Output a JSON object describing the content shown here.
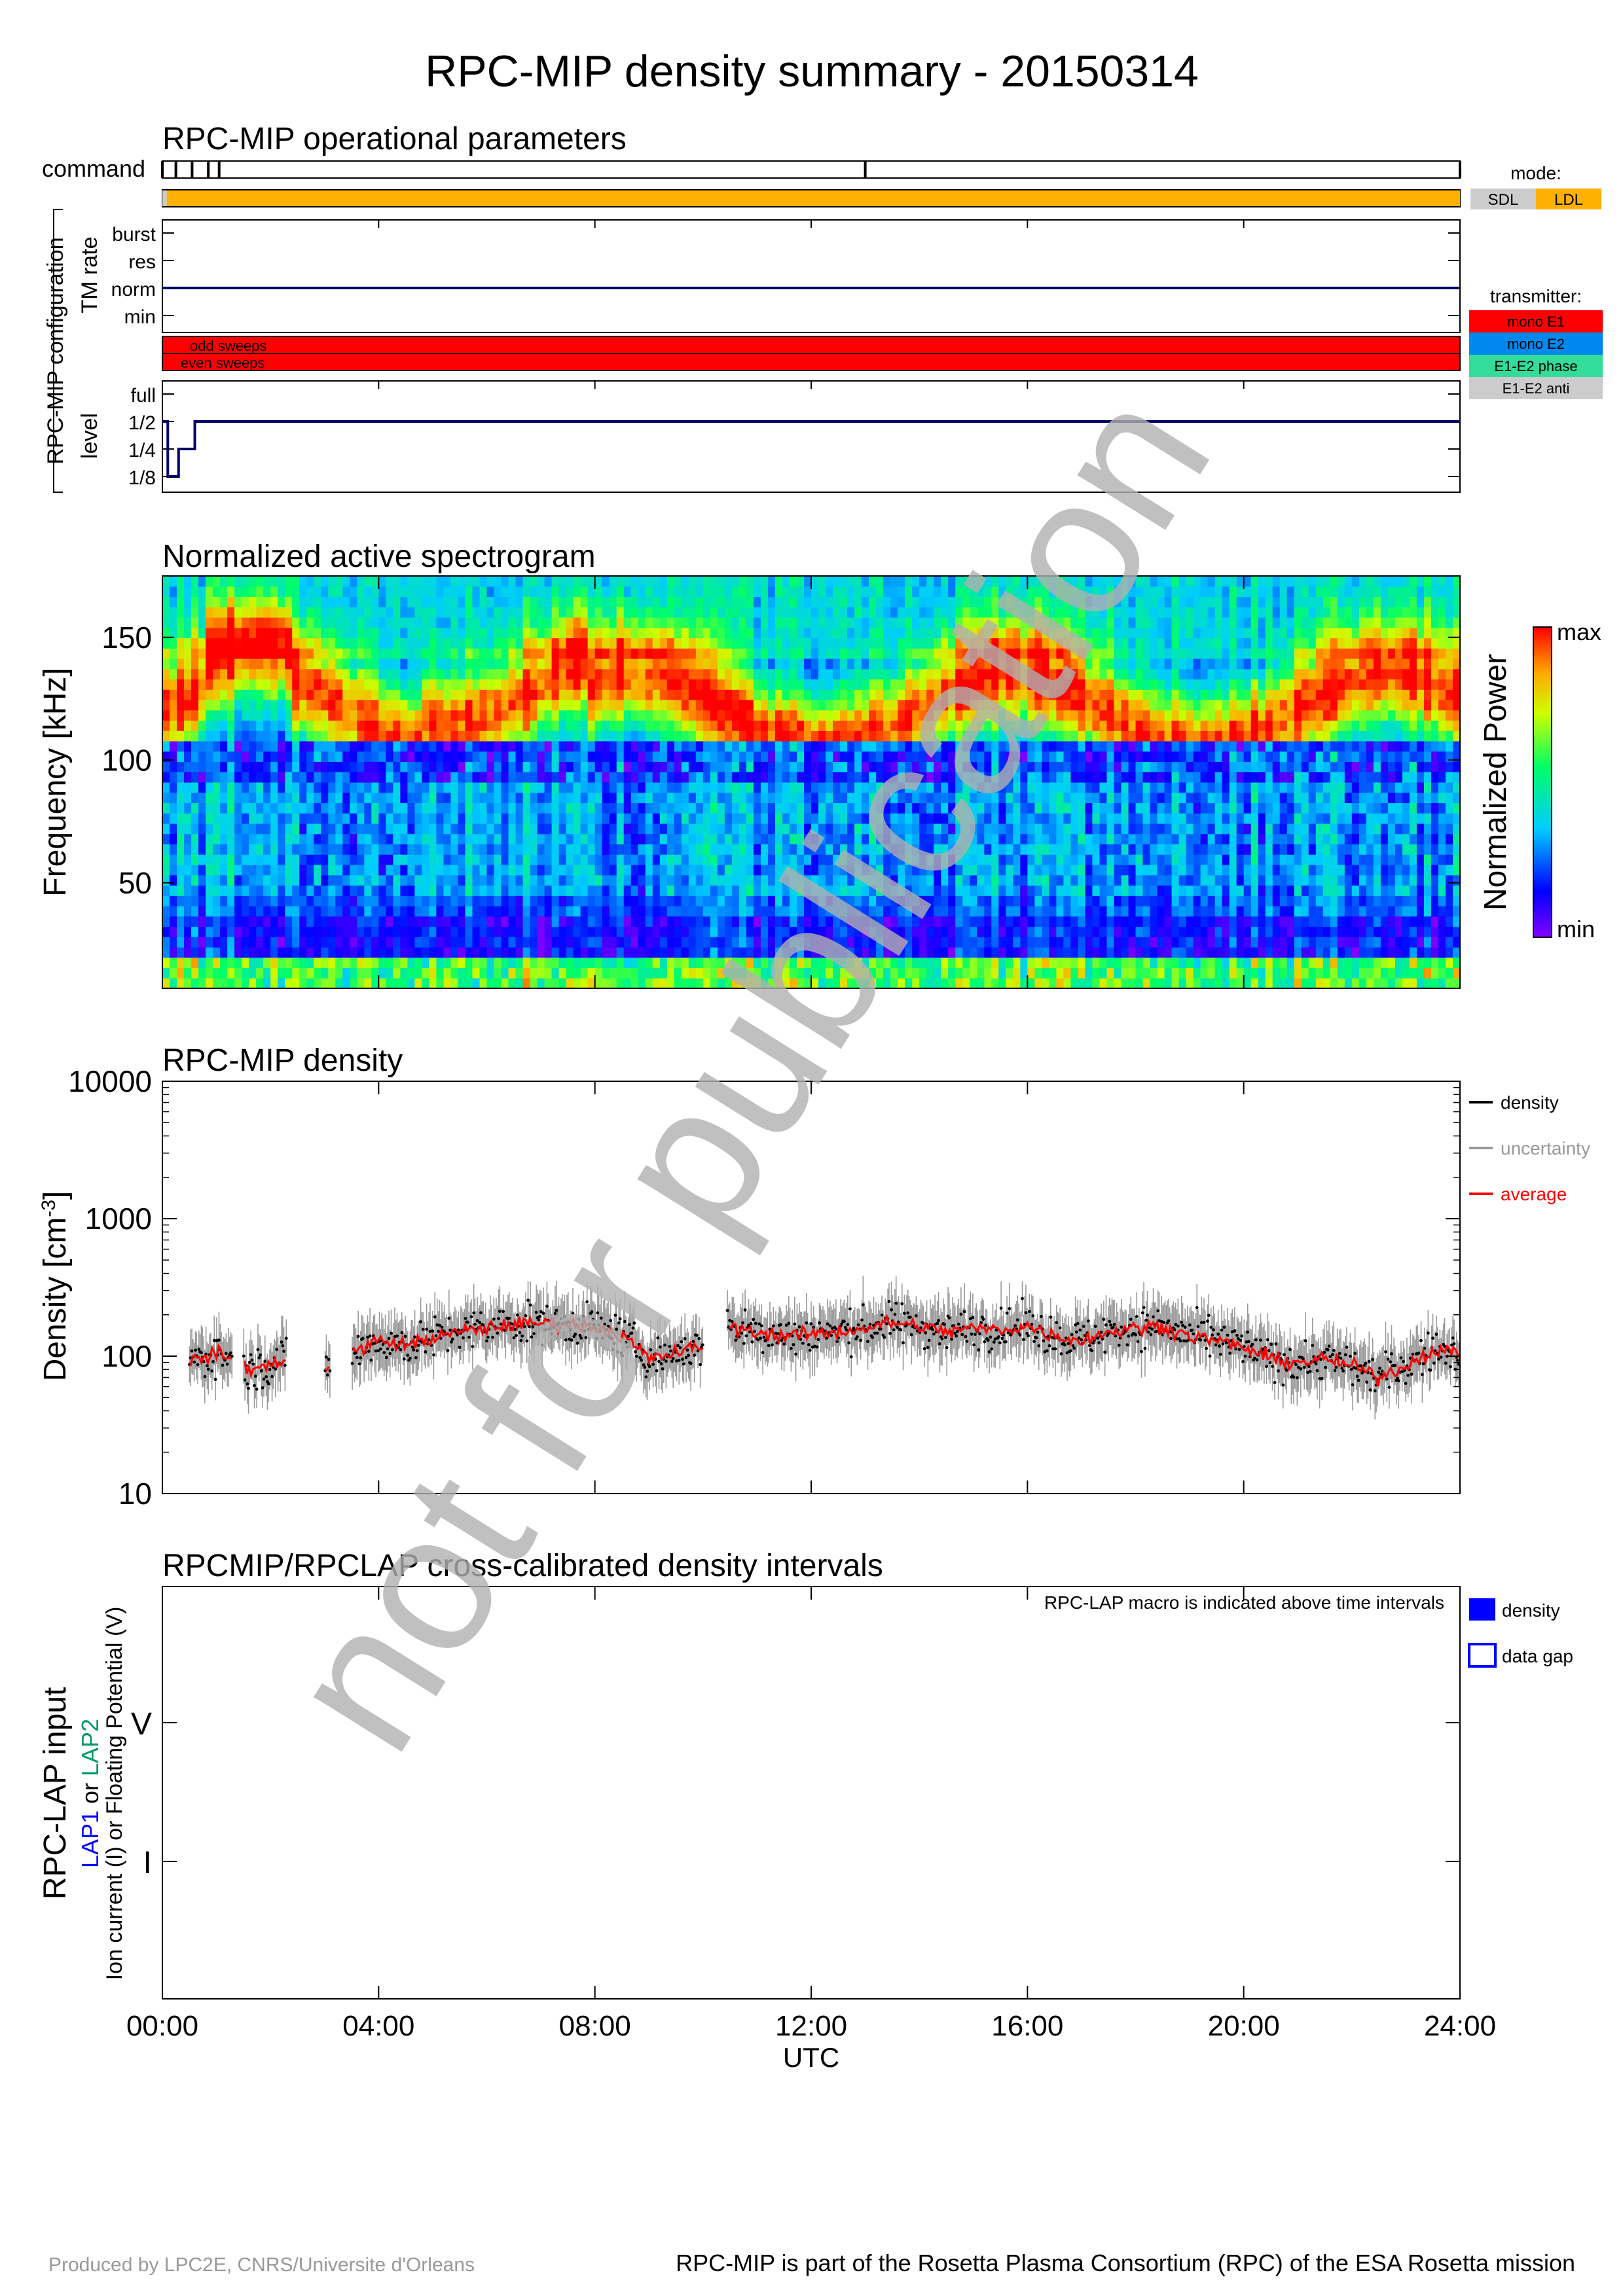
{
  "title": "RPC-MIP density summary - 20150314",
  "watermark": "not for publication",
  "footer": {
    "left": "Produced by LPC2E, CNRS/Universite d'Orleans",
    "right": "RPC-MIP is part of the Rosetta Plasma Consortium (RPC) of the ESA Rosetta mission"
  },
  "time_axis": {
    "ticks": [
      "00:00",
      "04:00",
      "08:00",
      "12:00",
      "16:00",
      "20:00",
      "24:00"
    ],
    "tick_hours": [
      0,
      4,
      8,
      12,
      16,
      20,
      24
    ],
    "label": "UTC",
    "range_hours": [
      0,
      24
    ]
  },
  "colors": {
    "sdl": "#cccccc",
    "ldl": "#ffb000",
    "mono_e1": "#ff0000",
    "mono_e2": "#0088ee",
    "e1e2_phase": "#33dd99",
    "e1e2_anti": "#cccccc",
    "line": "#000066",
    "density": "#000000",
    "uncertainty": "#999999",
    "average": "#ff0000",
    "lap_density": "#0000ff",
    "watermark": "#b0b0b0"
  },
  "operational": {
    "title": "RPC-MIP operational parameters",
    "command_label": "command",
    "command_marks_hours": [
      0.0,
      0.25,
      0.55,
      0.85,
      1.05,
      13.0,
      24.0
    ],
    "config_label": "RPC-MIP configuration",
    "mode": {
      "title": "mode:",
      "items": [
        "SDL",
        "LDL"
      ],
      "segments": [
        {
          "start": 0.0,
          "end": 0.08,
          "mode": "SDL"
        },
        {
          "start": 0.08,
          "end": 24.0,
          "mode": "LDL"
        }
      ]
    },
    "tm_rate": {
      "label": "TM rate",
      "levels": [
        "burst",
        "res",
        "norm",
        "min"
      ],
      "steps": [
        {
          "start": 0,
          "end": 24,
          "level": "norm"
        }
      ]
    },
    "transmitter": {
      "title": "transmitter:",
      "items": [
        "mono E1",
        "mono E2",
        "E1-E2 phase",
        "E1-E2 anti"
      ],
      "rows": [
        "odd sweeps",
        "even sweeps"
      ],
      "odd": "mono E1",
      "even": "mono E1"
    },
    "level": {
      "label": "level",
      "levels": [
        "full",
        "1/2",
        "1/4",
        "1/8"
      ],
      "steps": [
        {
          "start": 0.0,
          "end": 0.1,
          "level": "1/2"
        },
        {
          "start": 0.1,
          "end": 0.3,
          "level": "1/8"
        },
        {
          "start": 0.3,
          "end": 0.6,
          "level": "1/4"
        },
        {
          "start": 0.6,
          "end": 24.0,
          "level": "1/2"
        }
      ]
    }
  },
  "chart_data": [
    {
      "type": "heatmap",
      "title": "Normalized active spectrogram",
      "ylabel": "Frequency [kHz]",
      "yticks": [
        50,
        100,
        150
      ],
      "ylim": [
        7,
        175
      ],
      "colorbar": {
        "label": "Normalized Power",
        "max": "max",
        "min": "min"
      }
    },
    {
      "type": "scatter",
      "title": "RPC-MIP density",
      "ylabel": "Density [cm",
      "ylabel_sup": "-3",
      "ylabel_close": "]",
      "yscale": "log",
      "ylim": [
        10,
        10000
      ],
      "yticks": [
        10,
        100,
        1000,
        10000
      ],
      "legend": {
        "density": "density",
        "uncertainty": "uncertainty",
        "average": "average"
      },
      "legend_position": "right",
      "gaps_hours": [
        [
          1.3,
          1.5
        ],
        [
          2.3,
          3.0
        ],
        [
          3.1,
          3.5
        ],
        [
          10.0,
          10.45
        ]
      ],
      "average_profile": {
        "x": [
          0.5,
          1.0,
          1.3,
          1.6,
          2.0,
          2.2,
          3.0,
          3.6,
          4.0,
          4.5,
          5.0,
          5.5,
          6.0,
          6.5,
          7.0,
          7.5,
          8.0,
          8.5,
          9.0,
          9.5,
          10.0,
          10.5,
          11.0,
          11.5,
          12.0,
          12.5,
          13.0,
          13.5,
          14.0,
          14.5,
          15.0,
          15.5,
          16.0,
          16.5,
          17.0,
          17.5,
          18.0,
          18.5,
          19.0,
          19.5,
          20.0,
          20.5,
          21.0,
          21.5,
          22.0,
          22.5,
          23.0,
          23.5,
          24.0
        ],
        "y": [
          90,
          105,
          95,
          80,
          85,
          95,
          80,
          110,
          130,
          120,
          135,
          150,
          160,
          170,
          175,
          170,
          165,
          140,
          95,
          105,
          120,
          160,
          150,
          140,
          145,
          150,
          160,
          175,
          165,
          150,
          160,
          155,
          165,
          140,
          130,
          150,
          160,
          165,
          140,
          130,
          115,
          95,
          90,
          95,
          85,
          70,
          85,
          110,
          105
        ]
      }
    }
  ],
  "lap": {
    "title": "RPCMIP/RPCLAP cross-calibrated density intervals",
    "note": "RPC-LAP macro is indicated above time intervals",
    "ylabel_main": "RPC-LAP input",
    "ylabel_lap1": "LAP1",
    "ylabel_or": " or ",
    "ylabel_lap2": "LAP2",
    "ylabel_line3": "Ion current (I) or Floating Potential (V)",
    "yticks": [
      "V",
      "I"
    ],
    "legend": {
      "density": "density",
      "gap": "data gap"
    },
    "intervals": []
  }
}
